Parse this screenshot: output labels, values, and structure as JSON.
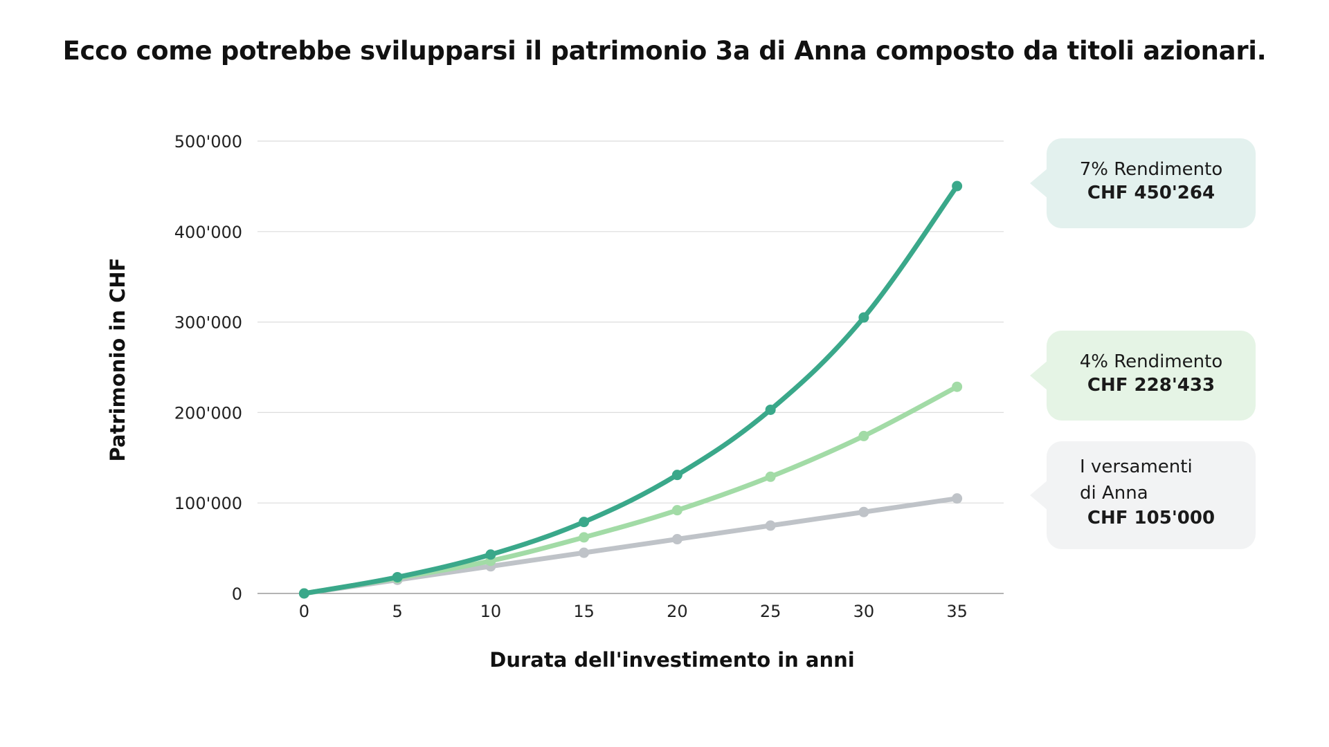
{
  "title": "Ecco come potrebbe svilupparsi il patrimonio 3a di Anna composto da titoli azionari.",
  "callouts": {
    "seven": {
      "line1": "7% Rendimento",
      "line2": "CHF 450'264",
      "color": "#e3f1ee"
    },
    "four": {
      "line1": "4% Rendimento",
      "line2": "CHF 228'433",
      "color": "#e5f4e5"
    },
    "deposits": {
      "line1a": "I versamenti",
      "line1b": "di Anna",
      "line2": "CHF 105'000",
      "color": "#f2f3f4"
    }
  },
  "chart_data": {
    "type": "line",
    "xlabel": "Durata dell'investimento in anni",
    "ylabel": "Patrimonio in CHF",
    "x": [
      0,
      5,
      10,
      15,
      20,
      25,
      30,
      35
    ],
    "xlim": [
      -2.5,
      37.5
    ],
    "ylim": [
      0,
      500000
    ],
    "y_ticks": [
      0,
      100000,
      200000,
      300000,
      400000,
      500000
    ],
    "y_tick_labels": [
      "0",
      "100'000",
      "200'000",
      "300'000",
      "400'000",
      "500'000"
    ],
    "x_tick_labels": [
      "0",
      "5",
      "10",
      "15",
      "20",
      "25",
      "30",
      "35"
    ],
    "grid": "horizontal",
    "series": [
      {
        "key": "deposits",
        "color": "#bfc3c8",
        "values": [
          0,
          15000,
          30000,
          45000,
          60000,
          75000,
          90000,
          105000
        ]
      },
      {
        "key": "r4",
        "color": "#a2dba6",
        "values": [
          0,
          17000,
          36000,
          62000,
          92000,
          129000,
          174000,
          228433
        ]
      },
      {
        "key": "r7",
        "color": "#3aa88a",
        "values": [
          0,
          18000,
          43000,
          79000,
          131000,
          203000,
          305000,
          450264
        ]
      }
    ]
  }
}
